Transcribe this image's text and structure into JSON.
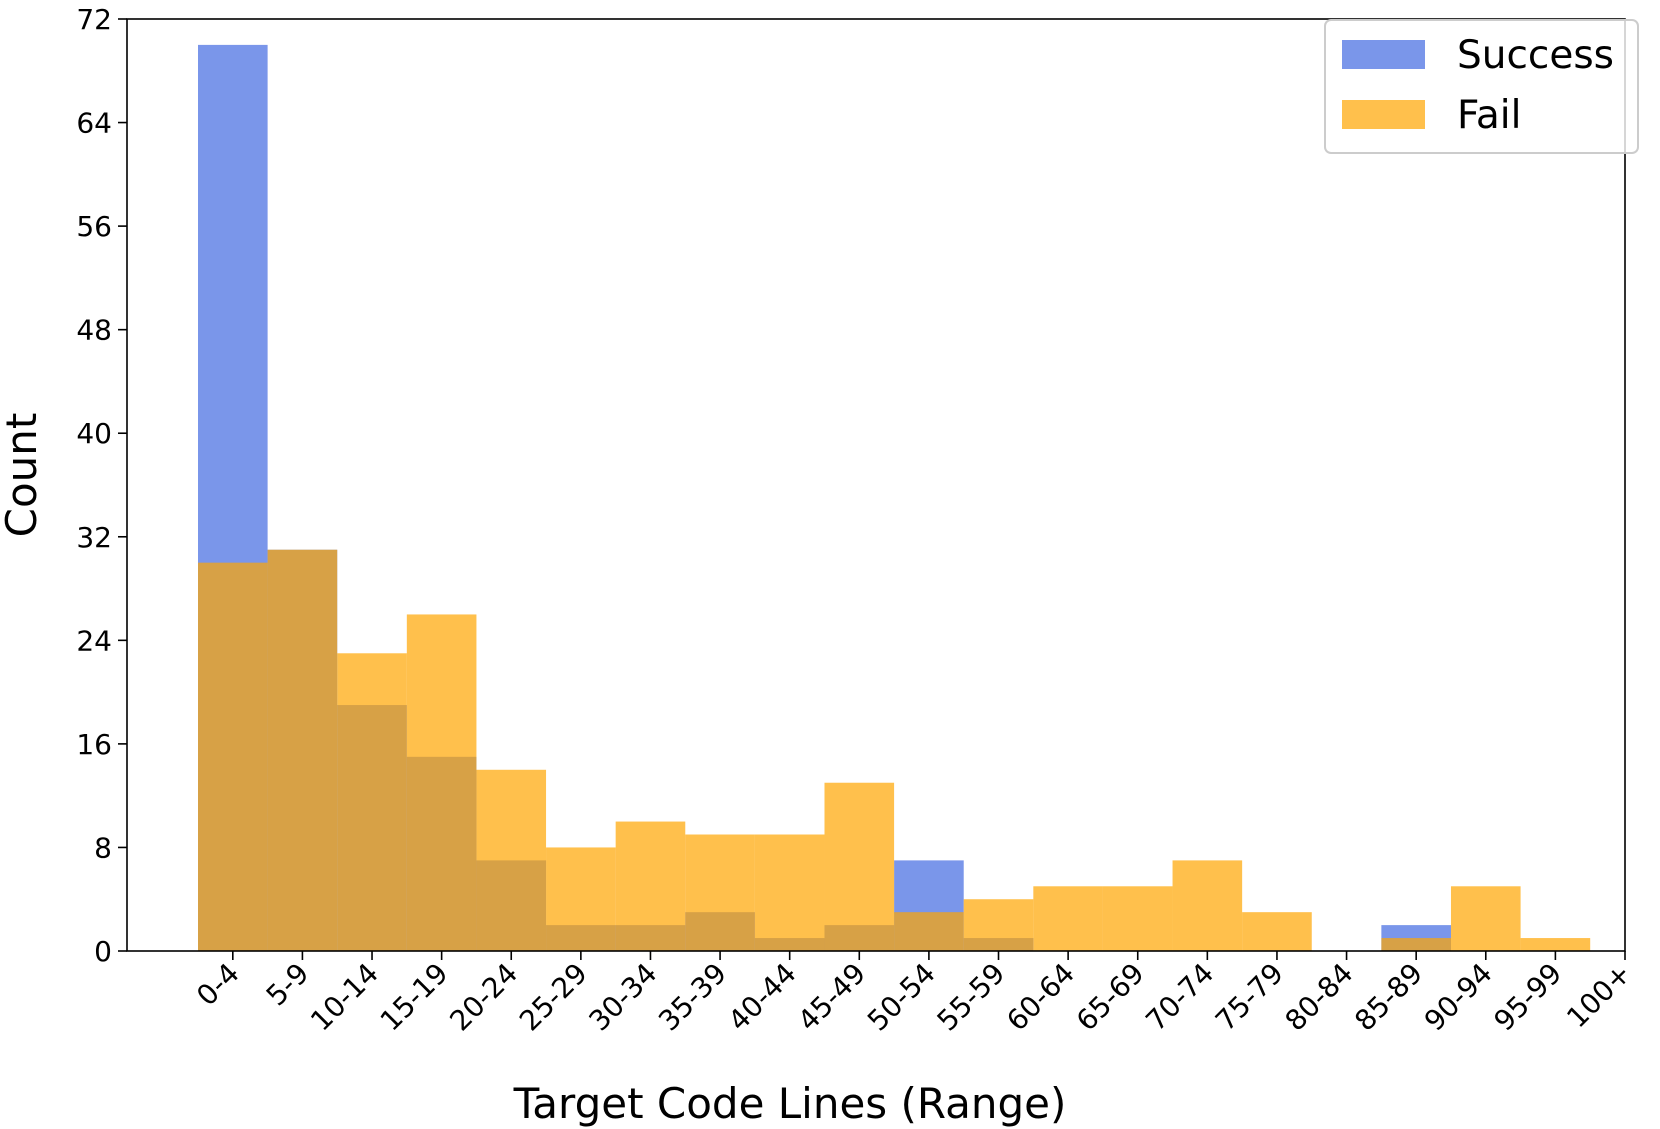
{
  "chart_data": {
    "type": "bar",
    "xlabel": "Target Code Lines (Range)",
    "ylabel": "Count",
    "categories": [
      "0-4",
      "5-9",
      "10-14",
      "15-19",
      "20-24",
      "25-29",
      "30-34",
      "35-39",
      "40-44",
      "45-49",
      "50-54",
      "55-59",
      "60-64",
      "65-69",
      "70-74",
      "75-79",
      "80-84",
      "85-89",
      "90-94",
      "95-99",
      "100+"
    ],
    "series": [
      {
        "name": "Success",
        "color": "#4169e1",
        "values": [
          70,
          31,
          19,
          15,
          7,
          2,
          2,
          3,
          1,
          2,
          7,
          1,
          0,
          0,
          0,
          0,
          0,
          2,
          0,
          0,
          0
        ]
      },
      {
        "name": "Fail",
        "color": "#ffa500",
        "values": [
          30,
          31,
          23,
          26,
          14,
          8,
          10,
          9,
          9,
          13,
          3,
          4,
          5,
          5,
          7,
          3,
          0,
          1,
          5,
          1,
          0
        ]
      }
    ],
    "opacity": 0.7,
    "ylim": [
      0,
      72
    ],
    "yticks": [
      0,
      8,
      16,
      24,
      32,
      40,
      48,
      56,
      64,
      72
    ],
    "legend": "upper right"
  }
}
